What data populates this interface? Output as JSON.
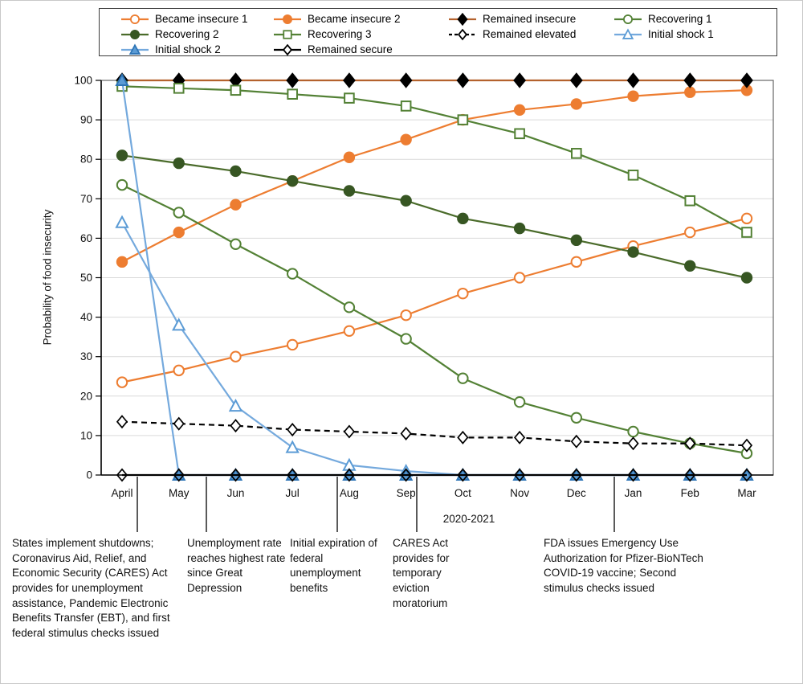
{
  "chart_data": {
    "type": "line",
    "title": "",
    "xlabel": "2020-2021",
    "ylabel": "Probability of food insecurity",
    "ylim": [
      0,
      100
    ],
    "ytick_step": 10,
    "grid": "horizontal",
    "legend_position": "top",
    "categories": [
      "April",
      "May",
      "Jun",
      "Jul",
      "Aug",
      "Sep",
      "Oct",
      "Nov",
      "Dec",
      "Jan",
      "Feb",
      "Mar"
    ],
    "series": [
      {
        "name": "Became insecure 1",
        "line_color": "#ED7D31",
        "marker": "circle",
        "marker_fill": "#FFFFFF",
        "marker_stroke": "#ED7D31",
        "dash": "",
        "values": [
          23.5,
          26.5,
          30,
          33,
          36.5,
          40.5,
          46,
          50,
          54,
          58,
          61.5,
          65
        ]
      },
      {
        "name": "Became insecure 2",
        "line_color": "#ED7D31",
        "marker": "circle",
        "marker_fill": "#ED7D31",
        "marker_stroke": "#ED7D31",
        "dash": "",
        "values": [
          54,
          61.5,
          68.5,
          74.5,
          80.5,
          85,
          90,
          92.5,
          94,
          96,
          97,
          97.5
        ]
      },
      {
        "name": "Remained insecure",
        "line_color": "#B4622D",
        "marker": "diamond",
        "marker_fill": "#000000",
        "marker_stroke": "#000000",
        "dash": "",
        "values": [
          100,
          100,
          100,
          100,
          100,
          100,
          100,
          100,
          100,
          100,
          100,
          100
        ]
      },
      {
        "name": "Recovering 1",
        "line_color": "#538135",
        "marker": "circle",
        "marker_fill": "#FFFFFF",
        "marker_stroke": "#538135",
        "dash": "",
        "values": [
          73.5,
          66.5,
          58.5,
          51,
          42.5,
          34.5,
          24.5,
          18.5,
          14.5,
          11,
          8,
          5.5
        ]
      },
      {
        "name": "Recovering 2",
        "line_color": "#4A6B2A",
        "marker": "circle",
        "marker_fill": "#375623",
        "marker_stroke": "#375623",
        "dash": "",
        "values": [
          81,
          79,
          77,
          74.5,
          72,
          69.5,
          65,
          62.5,
          59.5,
          56.5,
          53,
          50
        ]
      },
      {
        "name": "Recovering 3",
        "line_color": "#538135",
        "marker": "square",
        "marker_fill": "#FFFFFF",
        "marker_stroke": "#538135",
        "dash": "",
        "values": [
          98.5,
          98,
          97.5,
          96.5,
          95.5,
          93.5,
          90,
          86.5,
          81.5,
          76,
          69.5,
          61.5
        ]
      },
      {
        "name": "Remained elevated",
        "line_color": "#000000",
        "marker": "diamond-small",
        "marker_fill": "#FFFFFF",
        "marker_stroke": "#000000",
        "dash": "7 5",
        "values": [
          13.5,
          13,
          12.5,
          11.5,
          11,
          10.5,
          9.5,
          9.5,
          8.5,
          8,
          8,
          7.5
        ]
      },
      {
        "name": "Initial shock 1",
        "line_color": "#74A9DD",
        "marker": "triangle",
        "marker_fill": "#FFFFFF",
        "marker_stroke": "#5B9BD5",
        "dash": "",
        "values": [
          64,
          38,
          17.5,
          7,
          2.5,
          1,
          0,
          0,
          0,
          0,
          0,
          0
        ]
      },
      {
        "name": "Initial shock 2",
        "line_color": "#74A9DD",
        "marker": "triangle",
        "marker_fill": "#5B9BD5",
        "marker_stroke": "#2E75B6",
        "dash": "",
        "values": [
          100,
          0,
          0,
          0,
          0,
          0,
          0,
          0,
          0,
          0,
          0,
          0
        ]
      },
      {
        "name": "Remained secure",
        "line_color": "#000000",
        "marker": "diamond-small",
        "marker_fill": "none",
        "marker_stroke": "#000000",
        "dash": "",
        "values": [
          0,
          0,
          0,
          0,
          0,
          0,
          0,
          0,
          0,
          0,
          0,
          0
        ]
      }
    ],
    "annotations": [
      {
        "text": "States implement shutdowns; Coronavirus Aid, Relief, and Economic Security (CARES) Act provides for unemployment assistance, Pandemic Electronic Benefits Transfer (EBT), and first federal stimulus checks issued"
      },
      {
        "text": "Unemployment rate reaches highest rate since Great Depression"
      },
      {
        "text": "Initial expiration of federal unemployment benefits"
      },
      {
        "text": "CARES Act provides for temporary eviction moratorium"
      },
      {
        "text": "FDA issues Emergency Use Authorization for Pfizer-BioNTech COVID-19 vaccine; Second stimulus checks issued"
      }
    ]
  }
}
